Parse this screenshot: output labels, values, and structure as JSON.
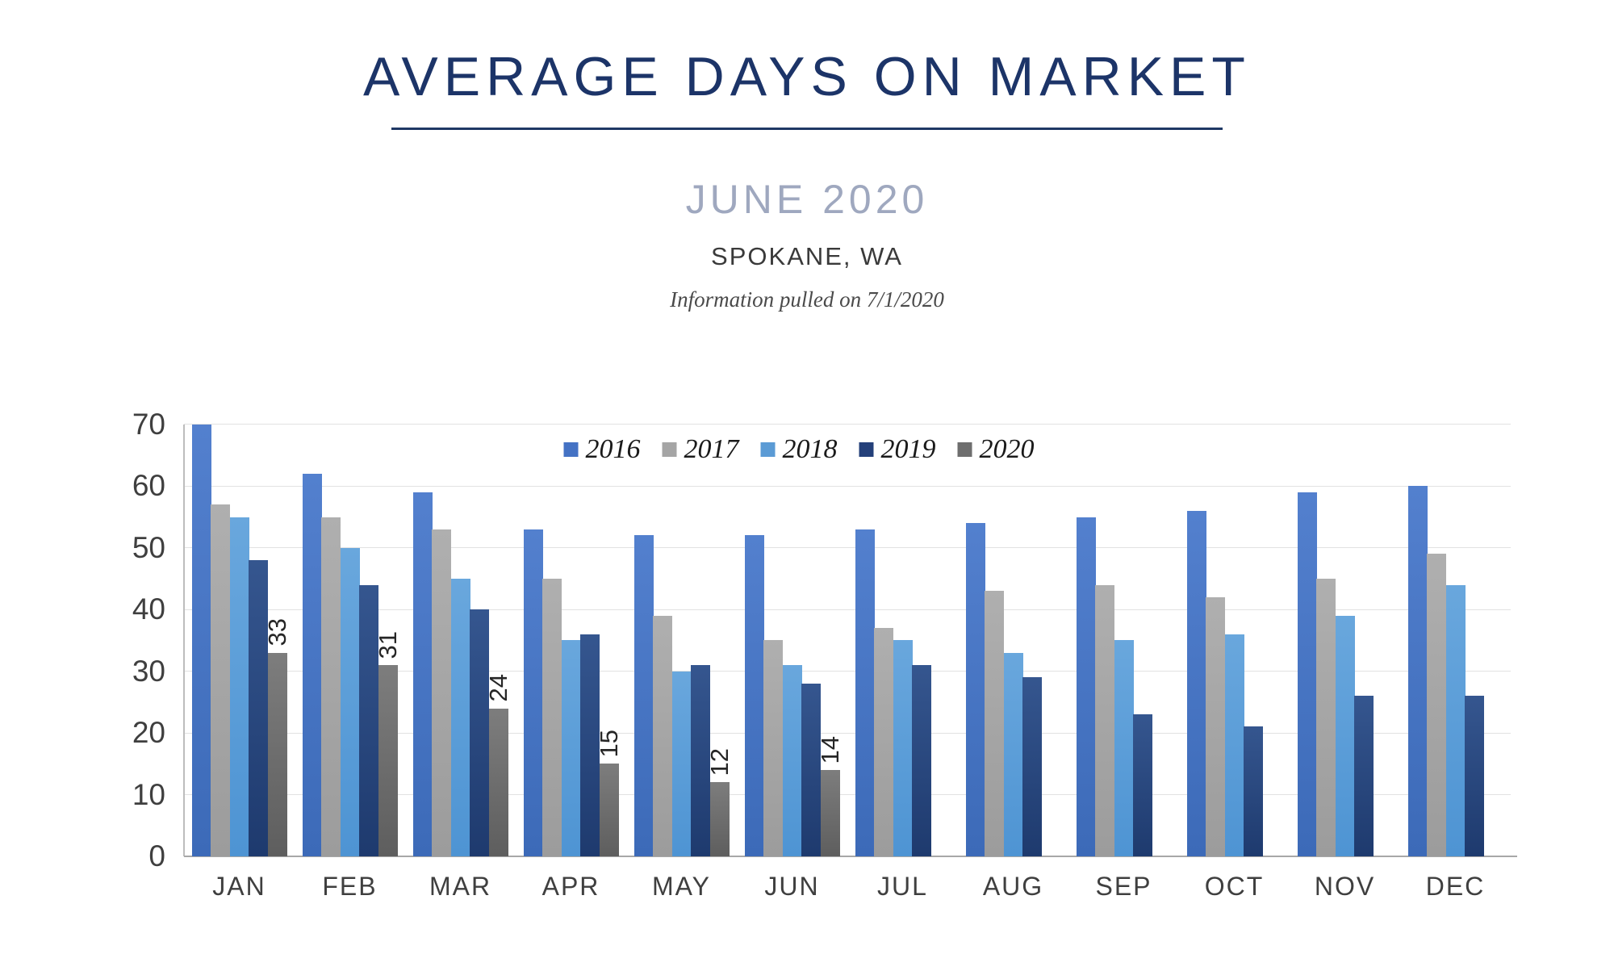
{
  "header": {
    "title": "AVERAGE DAYS ON MARKET",
    "subtitle": "JUNE 2020",
    "location": "SPOKANE, WA",
    "info_note": "Information pulled on 7/1/2020"
  },
  "colors": {
    "title": "#1C3468",
    "title_rule": "#1F3864",
    "subtitle": "#9FA8BF",
    "gridline": "#E2E2E2"
  },
  "chart_data": {
    "type": "bar",
    "title": "AVERAGE DAYS ON MARKET",
    "xlabel": "",
    "ylabel": "",
    "ylim": [
      0,
      70
    ],
    "yticks": [
      0,
      10,
      20,
      30,
      40,
      50,
      60,
      70
    ],
    "grid": true,
    "legend_position": "top-center",
    "categories": [
      "JAN",
      "FEB",
      "MAR",
      "APR",
      "MAY",
      "JUN",
      "JUL",
      "AUG",
      "SEP",
      "OCT",
      "NOV",
      "DEC"
    ],
    "series": [
      {
        "name": "2016",
        "legend_color": "#4472C4",
        "color_top": "#5380CE",
        "color_bottom": "#3C6AB8",
        "values": [
          70,
          62,
          59,
          53,
          52,
          52,
          53,
          54,
          55,
          56,
          59,
          60
        ],
        "data_labels": false
      },
      {
        "name": "2017",
        "legend_color": "#A5A5A5",
        "color_top": "#AFAFAF",
        "color_bottom": "#9C9C9C",
        "values": [
          57,
          55,
          53,
          45,
          39,
          35,
          37,
          43,
          44,
          42,
          45,
          49
        ],
        "data_labels": false
      },
      {
        "name": "2018",
        "legend_color": "#5B9BD5",
        "color_top": "#69A7DD",
        "color_bottom": "#4E94D3",
        "values": [
          55,
          50,
          45,
          35,
          30,
          31,
          35,
          33,
          35,
          36,
          39,
          44
        ],
        "data_labels": false
      },
      {
        "name": "2019",
        "legend_color": "#24407A",
        "color_top": "#35568F",
        "color_bottom": "#1E3A6E",
        "values": [
          48,
          44,
          40,
          36,
          31,
          28,
          31,
          29,
          23,
          21,
          26,
          26
        ],
        "data_labels": false
      },
      {
        "name": "2020",
        "legend_color": "#6E6E6E",
        "color_top": "#7D7D7D",
        "color_bottom": "#5E5E5E",
        "values": [
          33,
          31,
          24,
          15,
          12,
          14,
          null,
          null,
          null,
          null,
          null,
          null
        ],
        "data_labels": true
      }
    ]
  }
}
